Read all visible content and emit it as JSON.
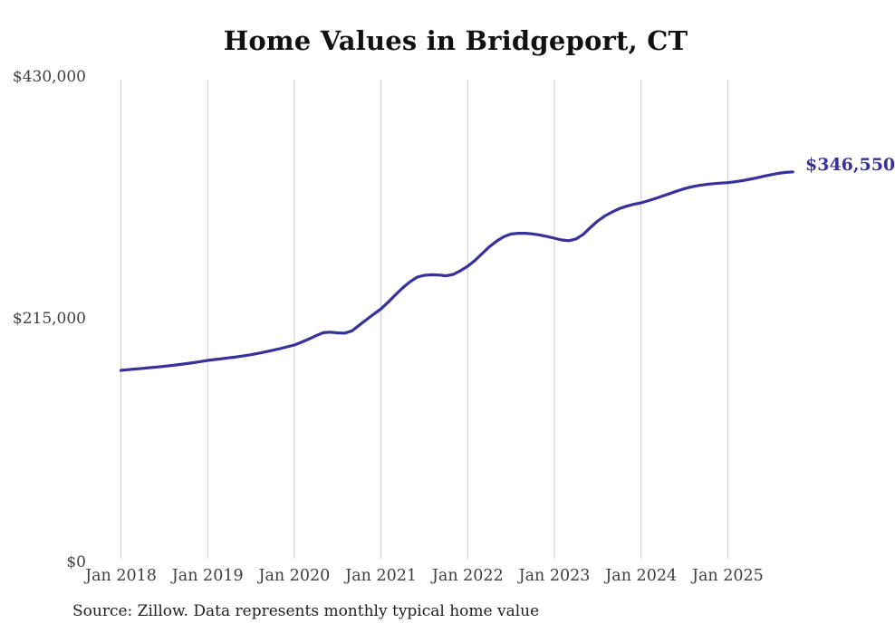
{
  "chart": {
    "title": "Home Values in Bridgeport, CT",
    "source_note": "Source: Zillow. Data represents monthly typical home value",
    "end_label": "$346,550",
    "y_ticks": [
      "$430,000",
      "$215,000",
      "$0"
    ],
    "x_ticks": [
      "Jan 2018",
      "Jan 2019",
      "Jan 2020",
      "Jan 2021",
      "Jan 2022",
      "Jan 2023",
      "Jan 2024",
      "Jan 2025"
    ],
    "colors": {
      "line": "#37319c",
      "end_label": "#37319c",
      "grid": "#cccccc",
      "tick_text": "#3f3f3f",
      "title_text": "#111111",
      "source_text": "#1f1f1f",
      "background": "#ffffff"
    }
  },
  "chart_data": {
    "type": "line",
    "title": "Home Values in Bridgeport, CT",
    "x_start_month": "2018-01",
    "x_end_month": "2025-10",
    "x_tick_labels": [
      "Jan 2018",
      "Jan 2019",
      "Jan 2020",
      "Jan 2021",
      "Jan 2022",
      "Jan 2023",
      "Jan 2024",
      "Jan 2025"
    ],
    "ylabel": "",
    "xlabel": "",
    "ylim": [
      0,
      430000
    ],
    "y_tick_values": [
      0,
      215000,
      430000
    ],
    "grid": "vertical-only",
    "legend_position": "none",
    "final_value": 346550,
    "final_value_label": "$346,550",
    "series": [
      {
        "name": "Monthly typical home value",
        "values": [
          170400,
          171000,
          171600,
          172200,
          172800,
          173400,
          174000,
          174700,
          175500,
          176300,
          177200,
          178200,
          179200,
          180000,
          180800,
          181600,
          182400,
          183300,
          184300,
          185500,
          186800,
          188200,
          189700,
          191300,
          192900,
          195400,
          198200,
          201200,
          203800,
          204300,
          203700,
          203400,
          205500,
          210600,
          215500,
          220300,
          225000,
          231000,
          237500,
          243600,
          248900,
          253200,
          254800,
          255300,
          255000,
          254300,
          255600,
          258900,
          262800,
          268000,
          274100,
          280100,
          285100,
          289000,
          291400,
          292100,
          292100,
          291500,
          290500,
          289200,
          287700,
          286100,
          285500,
          287000,
          291100,
          297400,
          303000,
          307500,
          311000,
          314000,
          316100,
          317800,
          319100,
          321000,
          323000,
          325200,
          327400,
          329600,
          331700,
          333300,
          334500,
          335400,
          336100,
          336600,
          337000,
          337800,
          338800,
          340000,
          341300,
          342700,
          344100,
          345300,
          346100,
          346550
        ]
      }
    ]
  }
}
